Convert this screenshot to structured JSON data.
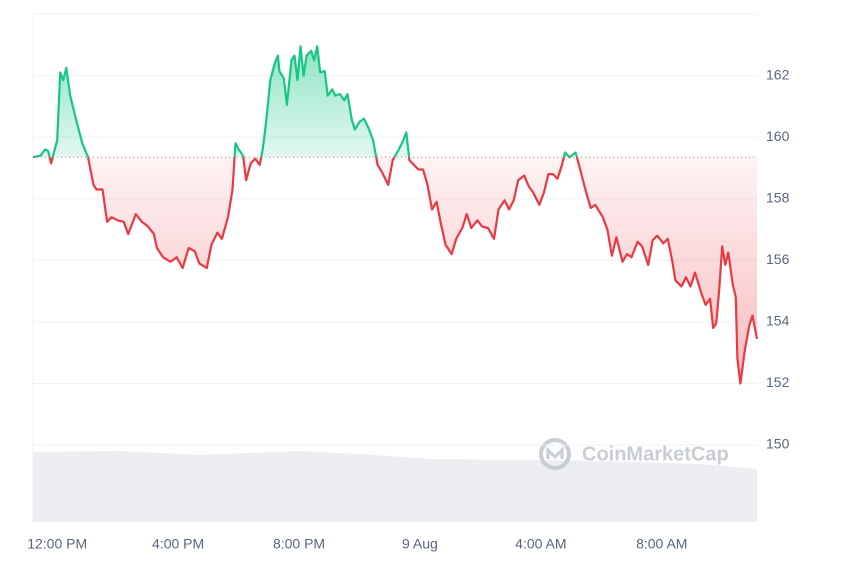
{
  "chart_data": {
    "type": "line",
    "x": [
      -0.8,
      -0.55,
      -0.4,
      -0.3,
      -0.2,
      0,
      0.1,
      0.2,
      0.3,
      0.43,
      0.63,
      0.83,
      1.02,
      1.2,
      1.3,
      1.5,
      1.65,
      1.8,
      2.0,
      2.2,
      2.35,
      2.6,
      2.8,
      3.0,
      3.2,
      3.3,
      3.5,
      3.75,
      3.95,
      4.15,
      4.35,
      4.55,
      4.7,
      4.95,
      5.1,
      5.3,
      5.45,
      5.65,
      5.8,
      5.9,
      6.0,
      6.15,
      6.25,
      6.4,
      6.55,
      6.7,
      6.8,
      6.9,
      7.05,
      7.2,
      7.3,
      7.35,
      7.5,
      7.6,
      7.75,
      7.85,
      7.95,
      8.05,
      8.15,
      8.25,
      8.4,
      8.5,
      8.6,
      8.7,
      8.85,
      8.95,
      9.1,
      9.2,
      9.35,
      9.5,
      9.6,
      9.75,
      9.85,
      10.0,
      10.15,
      10.3,
      10.45,
      10.6,
      10.75,
      10.95,
      11.1,
      11.3,
      11.45,
      11.55,
      11.65,
      11.8,
      11.95,
      12.1,
      12.25,
      12.4,
      12.55,
      12.7,
      12.85,
      13.05,
      13.2,
      13.4,
      13.55,
      13.7,
      13.9,
      14.05,
      14.25,
      14.45,
      14.6,
      14.8,
      14.95,
      15.1,
      15.25,
      15.45,
      15.6,
      15.75,
      15.95,
      16.1,
      16.25,
      16.4,
      16.55,
      16.7,
      16.8,
      16.95,
      17.15,
      17.3,
      17.5,
      17.65,
      17.8,
      18.05,
      18.2,
      18.35,
      18.5,
      18.7,
      18.85,
      19.0,
      19.2,
      19.35,
      19.55,
      19.7,
      19.85,
      20.05,
      20.2,
      20.35,
      20.45,
      20.65,
      20.8,
      20.95,
      21.1,
      21.3,
      21.45,
      21.6,
      21.7,
      21.8,
      21.9,
      22.0,
      22.1,
      22.2,
      22.35,
      22.45,
      22.5,
      22.6,
      22.75,
      22.9,
      23.0,
      23.15
    ],
    "series": [
      {
        "values": [
          159.35,
          159.4,
          159.6,
          159.55,
          159.15,
          159.9,
          162.1,
          161.85,
          162.25,
          161.35,
          160.55,
          159.8,
          159.35,
          158.45,
          158.3,
          158.3,
          157.25,
          157.4,
          157.3,
          157.25,
          156.85,
          157.5,
          157.25,
          157.1,
          156.85,
          156.4,
          156.1,
          155.95,
          156.1,
          155.75,
          156.4,
          156.3,
          155.9,
          155.75,
          156.5,
          156.9,
          156.7,
          157.4,
          158.3,
          159.8,
          159.6,
          159.4,
          158.6,
          159.15,
          159.3,
          159.1,
          159.6,
          160.4,
          161.85,
          162.4,
          162.65,
          162.15,
          161.9,
          161.05,
          162.5,
          162.65,
          161.85,
          162.95,
          162.0,
          162.65,
          162.8,
          162.5,
          162.95,
          162.1,
          162.15,
          161.35,
          161.55,
          161.35,
          161.4,
          161.2,
          161.4,
          160.55,
          160.25,
          160.5,
          160.6,
          160.3,
          159.9,
          159.1,
          158.85,
          158.45,
          159.25,
          159.6,
          159.9,
          160.15,
          159.25,
          159.1,
          158.95,
          158.95,
          158.45,
          157.65,
          157.9,
          157.15,
          156.5,
          156.2,
          156.7,
          157.05,
          157.5,
          157.05,
          157.3,
          157.1,
          157.05,
          156.7,
          157.65,
          157.95,
          157.65,
          157.95,
          158.6,
          158.75,
          158.4,
          158.2,
          157.8,
          158.2,
          158.8,
          158.8,
          158.65,
          159.1,
          159.5,
          159.35,
          159.5,
          158.95,
          158.2,
          157.7,
          157.8,
          157.4,
          157.0,
          156.15,
          156.75,
          155.95,
          156.2,
          156.1,
          156.6,
          156.45,
          155.85,
          156.65,
          156.8,
          156.55,
          156.7,
          155.95,
          155.35,
          155.15,
          155.45,
          155.15,
          155.6,
          154.95,
          154.55,
          154.75,
          153.8,
          153.95,
          155.05,
          156.45,
          155.85,
          156.25,
          155.2,
          154.8,
          152.8,
          152.0,
          153.1,
          153.9,
          154.2,
          153.45
        ]
      }
    ],
    "baseline": 159.35,
    "up_color": "#16c784",
    "down_color": "#ea3943",
    "xlim": [
      -0.8,
      23.15
    ],
    "xticks": [
      {
        "value": 0,
        "label": "12:00 PM"
      },
      {
        "value": 4,
        "label": "4:00 PM"
      },
      {
        "value": 8,
        "label": "8:00 PM"
      },
      {
        "value": 12,
        "label": "9 Aug"
      },
      {
        "value": 16,
        "label": "4:00 AM"
      },
      {
        "value": 20,
        "label": "8:00 AM"
      }
    ],
    "ylim": [
      147.5,
      164
    ],
    "yticks": [
      150,
      152,
      154,
      156,
      158,
      160,
      162
    ],
    "grid": true,
    "watermark": "CoinMarketCap"
  }
}
